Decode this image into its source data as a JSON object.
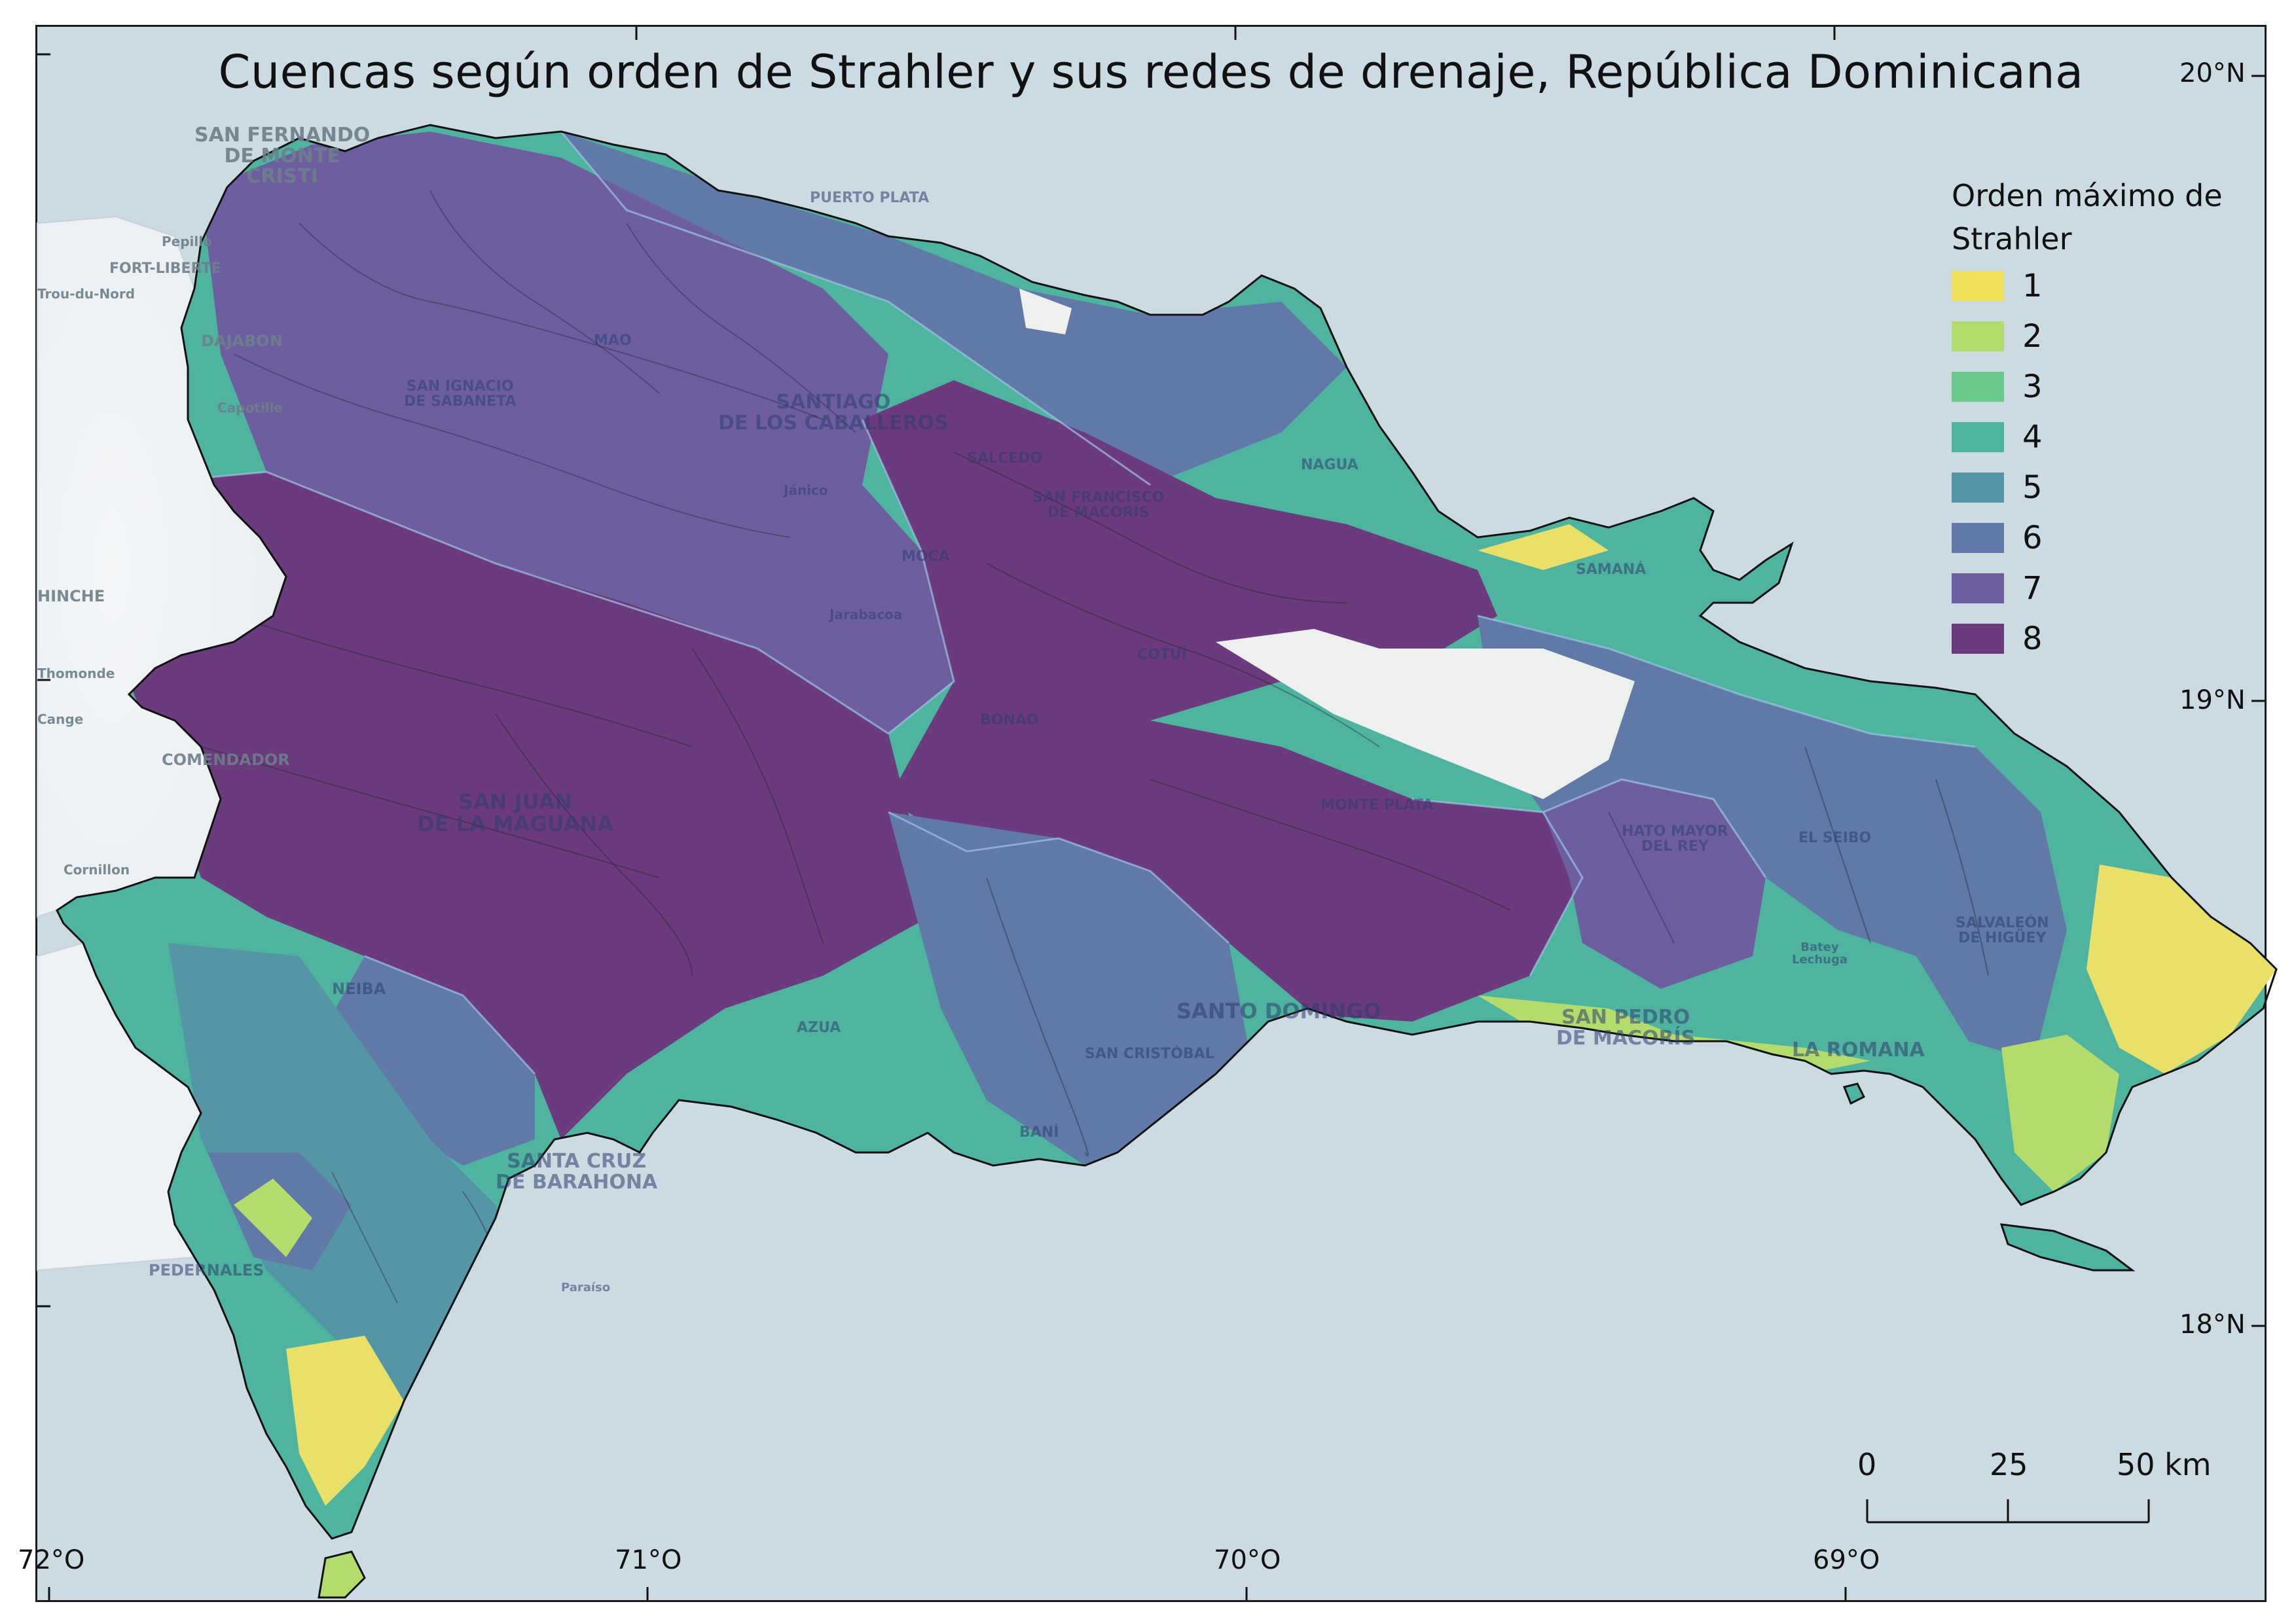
{
  "map": {
    "title": "Cuencas según orden de Strahler y sus redes de drenaje, República Dominicana",
    "legend": {
      "title": "Orden máximo de\nStrahler",
      "items": [
        {
          "label": "1",
          "color": "#f0e05a"
        },
        {
          "label": "2",
          "color": "#b3dc6c"
        },
        {
          "label": "3",
          "color": "#6cc98c"
        },
        {
          "label": "4",
          "color": "#4eb39f"
        },
        {
          "label": "5",
          "color": "#5596a6"
        },
        {
          "label": "6",
          "color": "#6079a6"
        },
        {
          "label": "7",
          "color": "#6d5f9f"
        },
        {
          "label": "8",
          "color": "#6b3b7e"
        }
      ]
    },
    "latitude_ticks": [
      "20°N",
      "19°N",
      "18°N"
    ],
    "longitude_ticks": [
      "72°O",
      "71°O",
      "70°O",
      "69°O"
    ],
    "scale_bar": {
      "labels": [
        "0",
        "25",
        "50 km"
      ]
    },
    "place_labels": [
      {
        "text": "SAN FERNANDO\nDE MONTE\nCRISTI",
        "style": "ext"
      },
      {
        "text": "PUERTO PLATA",
        "style": "in"
      },
      {
        "text": "Pepillo",
        "style": "ext"
      },
      {
        "text": "FORT-LIBERTÉ",
        "style": "ext"
      },
      {
        "text": "Trou-du-Nord",
        "style": "ext"
      },
      {
        "text": "DAJABON",
        "style": "ext"
      },
      {
        "text": "Capotille",
        "style": "ext"
      },
      {
        "text": "MAO",
        "style": "in"
      },
      {
        "text": "SAN IGNACIO\nDE SABANETA",
        "style": "in"
      },
      {
        "text": "SANTIAGO\nDE LOS CABALLEROS",
        "style": "in"
      },
      {
        "text": "SALCEDO",
        "style": "in"
      },
      {
        "text": "NAGUA",
        "style": "in"
      },
      {
        "text": "SAN FRANCISCO\nDE MACORÍS",
        "style": "in"
      },
      {
        "text": "SAMANÁ",
        "style": "in"
      },
      {
        "text": "MOCA",
        "style": "in"
      },
      {
        "text": "Jánico",
        "style": "in"
      },
      {
        "text": "Jarabacoa",
        "style": "in"
      },
      {
        "text": "HINCHE",
        "style": "ext"
      },
      {
        "text": "COTUÍ",
        "style": "in"
      },
      {
        "text": "Thomonde",
        "style": "ext"
      },
      {
        "text": "Cange",
        "style": "ext"
      },
      {
        "text": "COMENDADOR",
        "style": "ext"
      },
      {
        "text": "BONAO",
        "style": "in"
      },
      {
        "text": "MONTE PLATA",
        "style": "in"
      },
      {
        "text": "SAN JUAN\nDE LA MAGUANA",
        "style": "in"
      },
      {
        "text": "HATO MAYOR\nDEL REY",
        "style": "in"
      },
      {
        "text": "EL SEIBO",
        "style": "in"
      },
      {
        "text": "Cornillon",
        "style": "ext"
      },
      {
        "text": "SALVALEÓN\nDE HIGÜEY",
        "style": "in"
      },
      {
        "text": "Batey\nLechuga",
        "style": "in"
      },
      {
        "text": "NEIBA",
        "style": "in"
      },
      {
        "text": "AZUA",
        "style": "in"
      },
      {
        "text": "SANTO DOMINGO",
        "style": "in"
      },
      {
        "text": "SAN PEDRO\nDE MACORÍS",
        "style": "in"
      },
      {
        "text": "LA ROMANA",
        "style": "in"
      },
      {
        "text": "SAN CRISTÓBAL",
        "style": "in"
      },
      {
        "text": "BANÍ",
        "style": "in"
      },
      {
        "text": "SANTA CRUZ\nDE BARAHONA",
        "style": "in"
      },
      {
        "text": "PEDERNALES",
        "style": "in"
      },
      {
        "text": "Paraíso",
        "style": "in"
      }
    ]
  }
}
